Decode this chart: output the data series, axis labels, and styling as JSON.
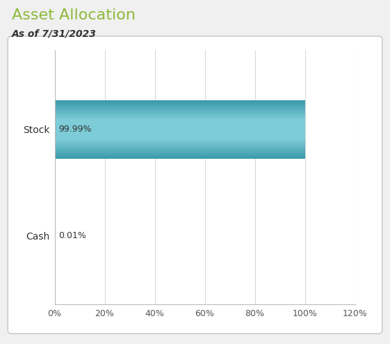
{
  "title": "Asset Allocation",
  "subtitle": "As of 7/31/2023",
  "categories": [
    "Stock",
    "Cash"
  ],
  "values": [
    99.99,
    0.01
  ],
  "bar_color_light": "#7dccd8",
  "bar_color_dark": "#3a9aaa",
  "value_labels": [
    "99.99%",
    "0.01%"
  ],
  "xlim": [
    0,
    120
  ],
  "xticks": [
    0,
    20,
    40,
    60,
    80,
    100,
    120
  ],
  "xtick_labels": [
    "0%",
    "20%",
    "40%",
    "60%",
    "80%",
    "100%",
    "120%"
  ],
  "title_color": "#8db83a",
  "subtitle_color": "#333333",
  "background_color": "#f0f0f0",
  "plot_bg_color": "#ffffff",
  "outer_bg_color": "#f0f0f0",
  "grid_color": "#d8d8d8",
  "label_fontsize": 10,
  "title_fontsize": 16,
  "subtitle_fontsize": 10,
  "value_label_fontsize": 9,
  "bar_height": 0.55
}
